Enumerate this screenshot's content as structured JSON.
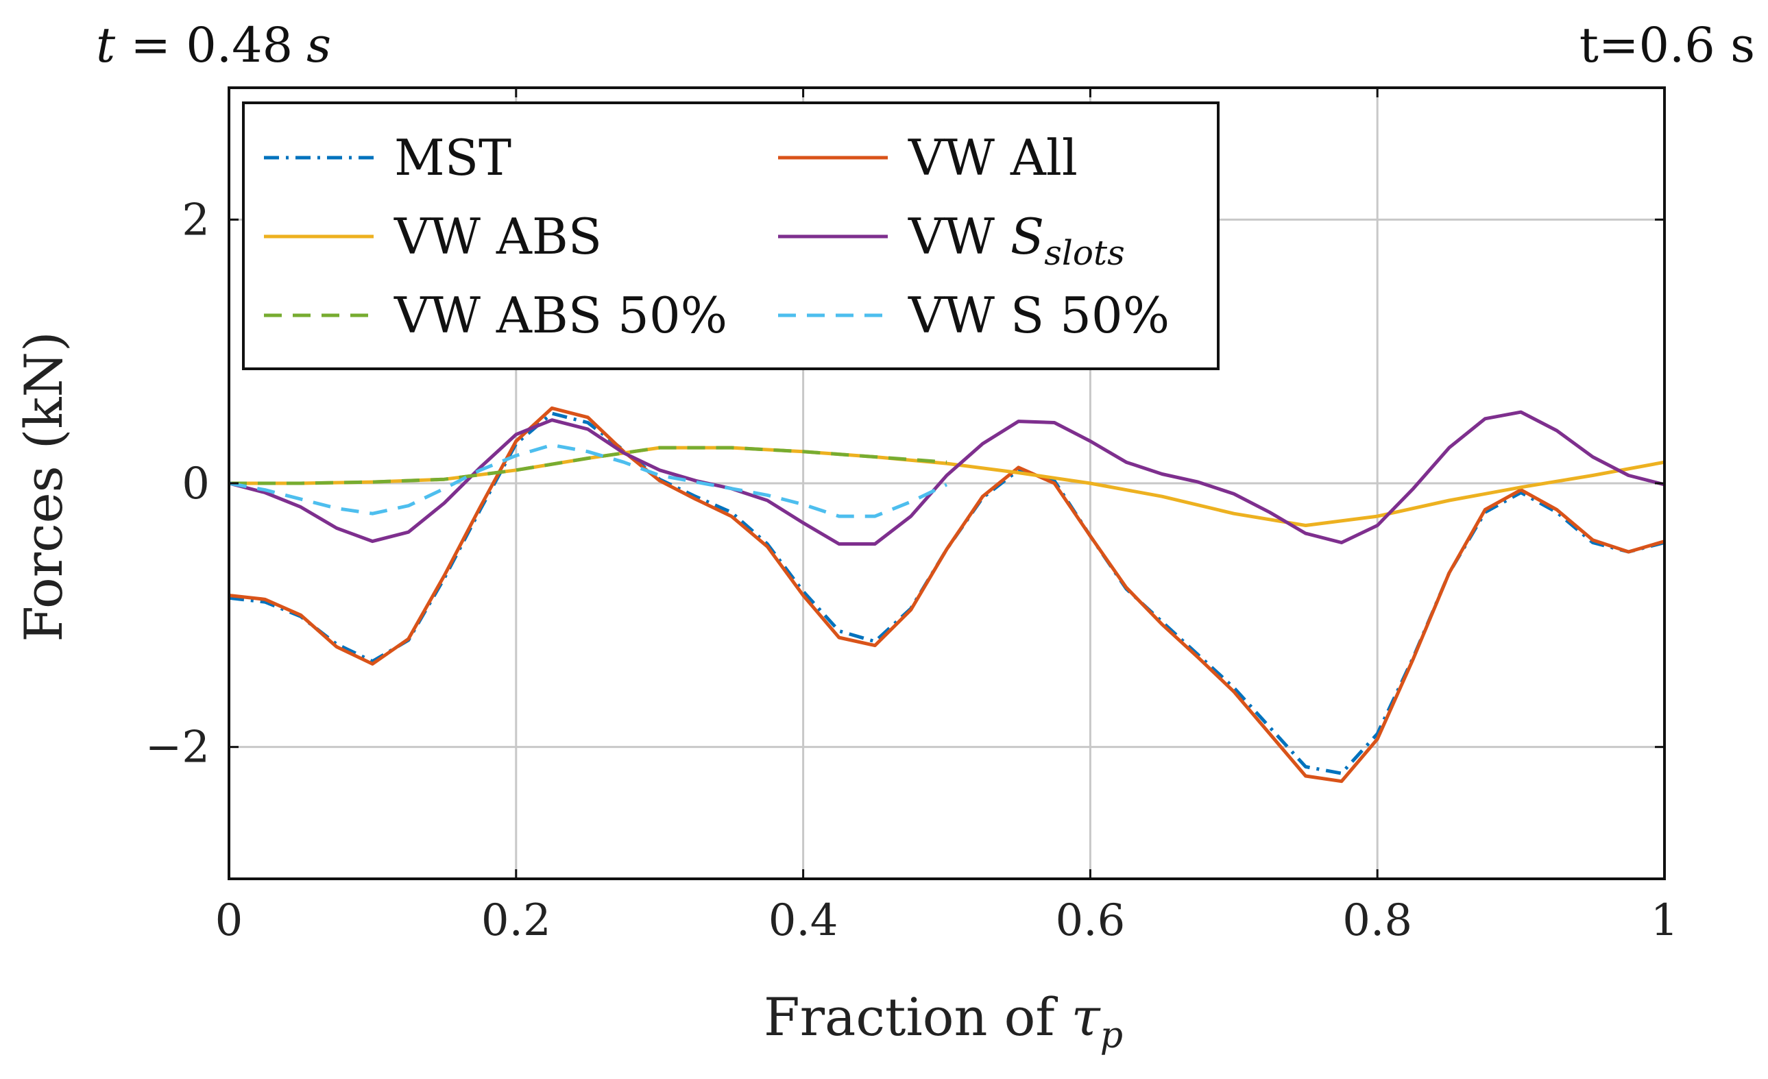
{
  "chart_data": {
    "type": "line",
    "corner_left": {
      "prefix": "t = ",
      "value": "0.48",
      "unit": "s"
    },
    "corner_right": "t=0.6 s",
    "xlabel": {
      "text": "Fraction of ",
      "symbol": "τ",
      "subscript": "p"
    },
    "ylabel": "Forces (kN)",
    "xlim": [
      0,
      1
    ],
    "ylim": [
      -3,
      3
    ],
    "xticks": [
      0,
      0.2,
      0.4,
      0.6,
      0.8,
      1
    ],
    "xtick_labels": [
      "0",
      "0.2",
      "0.4",
      "0.6",
      "0.8",
      "1"
    ],
    "yticks": [
      -2,
      0,
      2
    ],
    "ytick_labels": [
      "−2",
      "0",
      "2"
    ],
    "grid": true,
    "legend_position": "top-left",
    "series": [
      {
        "name": "MST",
        "color": "#0072BD",
        "dash": "dashdot",
        "x": [
          0,
          0.025,
          0.05,
          0.075,
          0.1,
          0.125,
          0.15,
          0.175,
          0.2,
          0.225,
          0.25,
          0.275,
          0.3,
          0.325,
          0.35,
          0.375,
          0.4,
          0.425,
          0.45,
          0.475,
          0.5,
          0.525,
          0.55,
          0.575,
          0.6,
          0.625,
          0.65,
          0.675,
          0.7,
          0.725,
          0.75,
          0.775,
          0.8,
          0.825,
          0.85,
          0.875,
          0.9,
          0.925,
          0.95,
          0.975,
          1
        ],
        "y": [
          -0.87,
          -0.9,
          -1.01,
          -1.22,
          -1.35,
          -1.19,
          -0.72,
          -0.2,
          0.3,
          0.53,
          0.46,
          0.25,
          0.03,
          -0.1,
          -0.22,
          -0.46,
          -0.82,
          -1.12,
          -1.2,
          -0.95,
          -0.5,
          -0.11,
          0.1,
          0.02,
          -0.4,
          -0.8,
          -1.05,
          -1.3,
          -1.55,
          -1.85,
          -2.15,
          -2.2,
          -1.9,
          -1.32,
          -0.68,
          -0.22,
          -0.07,
          -0.22,
          -0.45,
          -0.52,
          -0.45
        ]
      },
      {
        "name": "VW All",
        "color": "#D95319",
        "dash": "solid",
        "x": [
          0,
          0.025,
          0.05,
          0.075,
          0.1,
          0.125,
          0.15,
          0.175,
          0.2,
          0.225,
          0.25,
          0.275,
          0.3,
          0.325,
          0.35,
          0.375,
          0.4,
          0.425,
          0.45,
          0.475,
          0.5,
          0.525,
          0.55,
          0.575,
          0.6,
          0.625,
          0.65,
          0.675,
          0.7,
          0.725,
          0.75,
          0.775,
          0.8,
          0.825,
          0.85,
          0.875,
          0.9,
          0.925,
          0.95,
          0.975,
          1
        ],
        "y": [
          -0.85,
          -0.88,
          -1.0,
          -1.24,
          -1.37,
          -1.18,
          -0.7,
          -0.18,
          0.32,
          0.57,
          0.5,
          0.24,
          0.02,
          -0.12,
          -0.25,
          -0.48,
          -0.85,
          -1.17,
          -1.23,
          -0.96,
          -0.5,
          -0.1,
          0.12,
          0.0,
          -0.4,
          -0.79,
          -1.07,
          -1.32,
          -1.58,
          -1.9,
          -2.22,
          -2.26,
          -1.94,
          -1.33,
          -0.68,
          -0.2,
          -0.05,
          -0.2,
          -0.43,
          -0.52,
          -0.44
        ]
      },
      {
        "name": "VW ABS",
        "color": "#EDB120",
        "dash": "solid",
        "x": [
          0,
          0.05,
          0.1,
          0.15,
          0.2,
          0.25,
          0.3,
          0.35,
          0.4,
          0.45,
          0.5,
          0.55,
          0.6,
          0.65,
          0.7,
          0.75,
          0.8,
          0.85,
          0.9,
          0.95,
          1
        ],
        "y": [
          0.0,
          0.0,
          0.01,
          0.03,
          0.1,
          0.19,
          0.27,
          0.27,
          0.24,
          0.2,
          0.15,
          0.08,
          0.0,
          -0.1,
          -0.23,
          -0.32,
          -0.25,
          -0.13,
          -0.03,
          0.06,
          0.16
        ]
      },
      {
        "name": "VW S_slots",
        "color": "#7E2F8E",
        "dash": "solid",
        "x": [
          0,
          0.025,
          0.05,
          0.075,
          0.1,
          0.125,
          0.15,
          0.175,
          0.2,
          0.225,
          0.25,
          0.275,
          0.3,
          0.325,
          0.35,
          0.375,
          0.4,
          0.425,
          0.45,
          0.475,
          0.5,
          0.525,
          0.55,
          0.575,
          0.6,
          0.625,
          0.65,
          0.675,
          0.7,
          0.725,
          0.75,
          0.775,
          0.8,
          0.825,
          0.85,
          0.875,
          0.9,
          0.925,
          0.95,
          0.975,
          1
        ],
        "y": [
          0.0,
          -0.07,
          -0.18,
          -0.34,
          -0.44,
          -0.37,
          -0.15,
          0.12,
          0.37,
          0.48,
          0.41,
          0.23,
          0.1,
          0.02,
          -0.04,
          -0.13,
          -0.3,
          -0.46,
          -0.46,
          -0.25,
          0.06,
          0.3,
          0.47,
          0.46,
          0.32,
          0.16,
          0.07,
          0.01,
          -0.08,
          -0.22,
          -0.38,
          -0.45,
          -0.32,
          -0.04,
          0.27,
          0.49,
          0.54,
          0.4,
          0.2,
          0.06,
          -0.01
        ]
      },
      {
        "name": "VW ABS 50%",
        "color": "#77AC30",
        "dash": "dashed",
        "x": [
          0,
          0.05,
          0.1,
          0.15,
          0.2,
          0.25,
          0.3,
          0.35,
          0.4,
          0.45,
          0.5
        ],
        "y": [
          0.0,
          0.0,
          0.01,
          0.03,
          0.1,
          0.19,
          0.27,
          0.27,
          0.24,
          0.2,
          0.16
        ]
      },
      {
        "name": "VW S 50%",
        "color": "#4DBEEE",
        "dash": "dashed",
        "x": [
          0,
          0.025,
          0.05,
          0.075,
          0.1,
          0.125,
          0.15,
          0.175,
          0.2,
          0.225,
          0.25,
          0.275,
          0.3,
          0.325,
          0.35,
          0.375,
          0.4,
          0.425,
          0.45,
          0.475,
          0.5
        ],
        "y": [
          0.0,
          -0.05,
          -0.12,
          -0.19,
          -0.23,
          -0.17,
          -0.04,
          0.1,
          0.21,
          0.29,
          0.24,
          0.16,
          0.06,
          0.01,
          -0.04,
          -0.09,
          -0.16,
          -0.25,
          -0.25,
          -0.14,
          -0.01
        ]
      }
    ],
    "legend": {
      "rows": [
        [
          {
            "series": "MST",
            "label": "MST"
          },
          {
            "series": "VW All",
            "label": "VW All"
          }
        ],
        [
          {
            "series": "VW ABS",
            "label": "VW ABS"
          },
          {
            "series": "VW S_slots",
            "label": "VW ",
            "math": "S",
            "subscript": "slots"
          }
        ],
        [
          {
            "series": "VW ABS 50%",
            "label": "VW ABS 50%"
          },
          {
            "series": "VW S 50%",
            "label": "VW S 50%"
          }
        ]
      ]
    }
  }
}
